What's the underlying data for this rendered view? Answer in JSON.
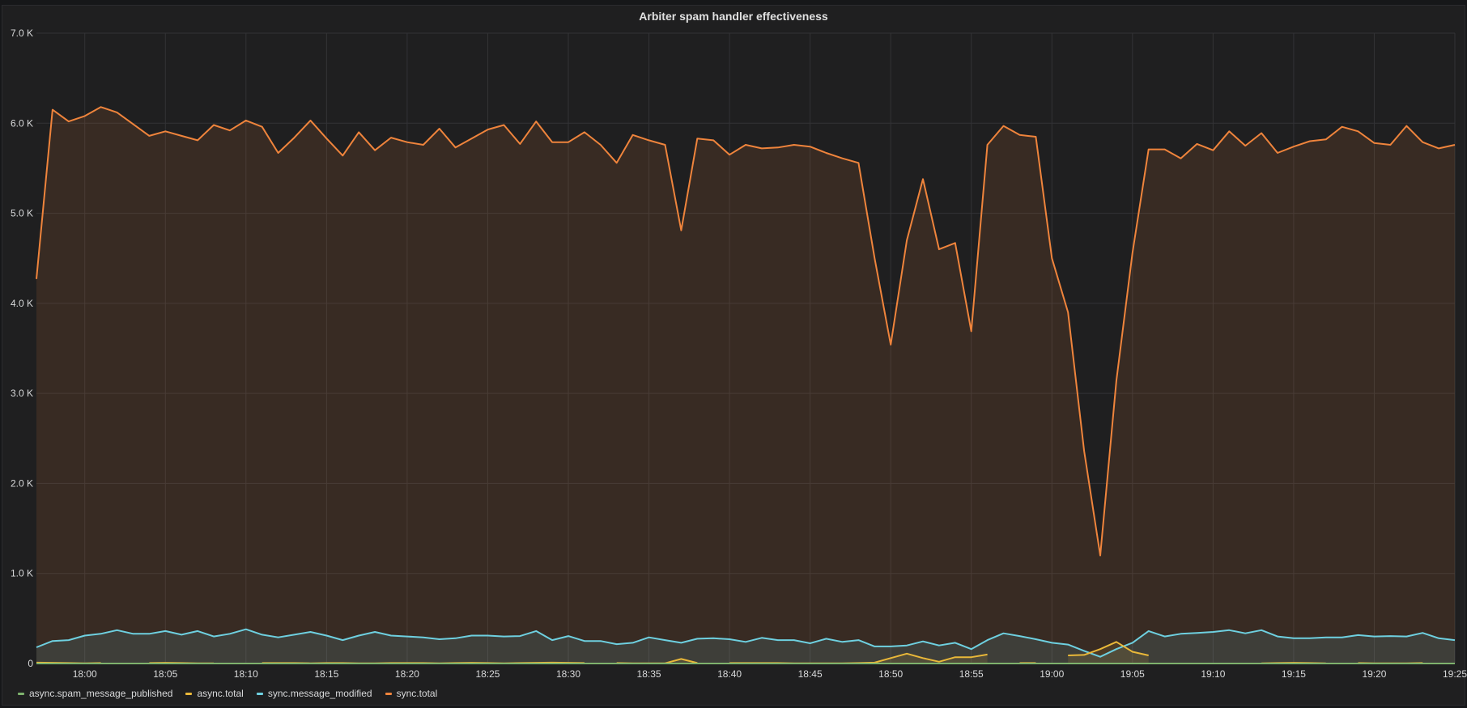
{
  "panel": {
    "title": "Arbiter spam handler effectiveness"
  },
  "chart_data": {
    "type": "line",
    "title": "Arbiter spam handler effectiveness",
    "x_start": "17:57",
    "x_step_minutes": 1,
    "xlim": [
      "17:57",
      "19:25"
    ],
    "ylim": [
      0,
      7000
    ],
    "y_tick_values": [
      0,
      1000,
      2000,
      3000,
      4000,
      5000,
      6000,
      7000
    ],
    "y_tick_labels": [
      "0",
      "1.0 K",
      "2.0 K",
      "3.0 K",
      "4.0 K",
      "5.0 K",
      "6.0 K",
      "7.0 K"
    ],
    "x_tick_labels": [
      "18:00",
      "18:05",
      "18:10",
      "18:15",
      "18:20",
      "18:25",
      "18:30",
      "18:35",
      "18:40",
      "18:45",
      "18:50",
      "18:55",
      "19:00",
      "19:05",
      "19:10",
      "19:15",
      "19:20",
      "19:25"
    ],
    "x_tick_minutes_from_start": [
      3,
      8,
      13,
      18,
      23,
      28,
      33,
      38,
      43,
      48,
      53,
      58,
      63,
      68,
      73,
      78,
      83,
      88
    ],
    "grid": true,
    "legend_position": "bottom-left",
    "series": [
      {
        "name": "async.spam_message_published",
        "color": "#7eb26d",
        "values": [
          0,
          0,
          0,
          0,
          0,
          0,
          0,
          0,
          0,
          0,
          0,
          0,
          0,
          0,
          0,
          0,
          0,
          0,
          0,
          0,
          0,
          0,
          0,
          0,
          0,
          0,
          0,
          0,
          0,
          0,
          0,
          0,
          0,
          0,
          0,
          0,
          0,
          0,
          0,
          0,
          0,
          0,
          0,
          0,
          0,
          0,
          0,
          0,
          0,
          0,
          0,
          0,
          0,
          0,
          0,
          0,
          0,
          0,
          0,
          0,
          0,
          0,
          0,
          0,
          0,
          0,
          0,
          0,
          0,
          0,
          0,
          0,
          0,
          0,
          0,
          0,
          0,
          0,
          0,
          0,
          0,
          0,
          0,
          0,
          0,
          0,
          0,
          0,
          0
        ]
      },
      {
        "name": "async.total",
        "color": "#eab839",
        "values": [
          10,
          8,
          5,
          3,
          5,
          null,
          null,
          5,
          8,
          5,
          3,
          3,
          null,
          null,
          5,
          5,
          5,
          3,
          5,
          5,
          3,
          3,
          5,
          5,
          5,
          3,
          5,
          8,
          5,
          3,
          5,
          8,
          10,
          8,
          5,
          null,
          5,
          3,
          3,
          3,
          50,
          5,
          null,
          5,
          5,
          5,
          5,
          3,
          3,
          3,
          3,
          5,
          10,
          60,
          110,
          60,
          20,
          70,
          70,
          100,
          null,
          5,
          5,
          null,
          90,
          95,
          160,
          240,
          130,
          90,
          null,
          null,
          null,
          null,
          null,
          null,
          3,
          5,
          8,
          5,
          3,
          null,
          5,
          3,
          3,
          3,
          5,
          null,
          null
        ]
      },
      {
        "name": "sync.message_modified",
        "color": "#6ed0e0",
        "values": [
          180,
          250,
          260,
          310,
          330,
          370,
          330,
          330,
          360,
          320,
          360,
          300,
          330,
          380,
          320,
          290,
          320,
          350,
          310,
          260,
          310,
          350,
          310,
          300,
          290,
          270,
          280,
          310,
          310,
          300,
          305,
          360,
          260,
          305,
          250,
          250,
          215,
          230,
          290,
          260,
          230,
          275,
          280,
          270,
          240,
          285,
          260,
          260,
          225,
          275,
          240,
          260,
          190,
          190,
          200,
          245,
          200,
          230,
          160,
          260,
          335,
          305,
          270,
          230,
          210,
          140,
          75,
          160,
          230,
          360,
          300,
          330,
          340,
          350,
          370,
          335,
          370,
          300,
          280,
          280,
          290,
          290,
          315,
          300,
          305,
          300,
          340,
          280,
          260
        ]
      },
      {
        "name": "sync.total",
        "color": "#ef843c",
        "values": [
          4270,
          6150,
          6020,
          6080,
          6180,
          6120,
          5990,
          5860,
          5910,
          5860,
          5810,
          5980,
          5920,
          6030,
          5960,
          5670,
          5840,
          6030,
          5830,
          5640,
          5900,
          5700,
          5840,
          5790,
          5760,
          5940,
          5730,
          5830,
          5930,
          5980,
          5770,
          6020,
          5790,
          5790,
          5900,
          5760,
          5560,
          5870,
          5810,
          5760,
          4810,
          5830,
          5810,
          5650,
          5760,
          5720,
          5730,
          5760,
          5740,
          5670,
          5610,
          5560,
          4500,
          3540,
          4700,
          5380,
          4600,
          4670,
          3690,
          5760,
          5970,
          5870,
          5850,
          4500,
          3900,
          2360,
          1200,
          3140,
          4560,
          5710,
          5710,
          5610,
          5770,
          5700,
          5910,
          5750,
          5890,
          5670,
          5740,
          5800,
          5820,
          5960,
          5910,
          5780,
          5760,
          5970,
          5790,
          5720,
          5760
        ]
      }
    ]
  }
}
